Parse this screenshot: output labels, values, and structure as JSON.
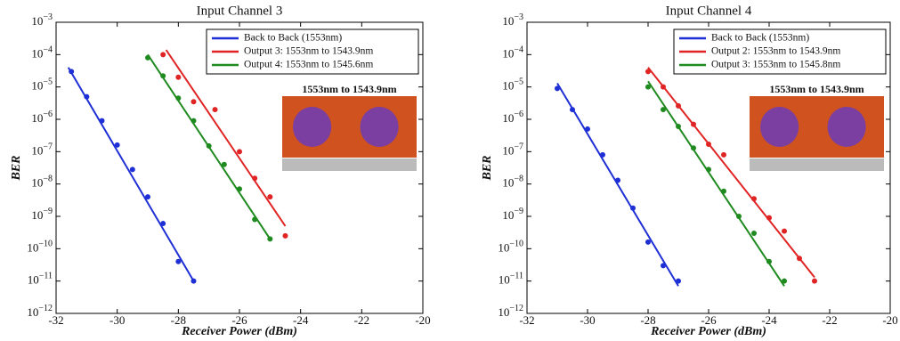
{
  "chart_data": [
    {
      "type": "scatter",
      "title": "Input Channel 3",
      "xlabel": "Receiver Power (dBm)",
      "ylabel": "BER",
      "log_y": true,
      "legend": "upper right",
      "annotation": "1553nm to 1543.9nm",
      "xlim": [
        -32,
        -20
      ],
      "xticks": [
        -32,
        -30,
        -28,
        -26,
        -24,
        -22,
        -20
      ],
      "ylim": [
        1e-12,
        0.001
      ],
      "yticks": [
        {
          "value": 1e-12,
          "label": "10−12"
        },
        {
          "value": 1e-11,
          "label": "10−11"
        },
        {
          "value": 1e-10,
          "label": "10−10"
        },
        {
          "value": 1e-09,
          "label": "10−9"
        },
        {
          "value": 1e-08,
          "label": "10−8"
        },
        {
          "value": 1e-07,
          "label": "10−7"
        },
        {
          "value": 1e-06,
          "label": "10−6"
        },
        {
          "value": 1e-05,
          "label": "10−5"
        },
        {
          "value": 0.0001,
          "label": "10−4"
        },
        {
          "value": 0.001,
          "label": "10−3"
        }
      ],
      "series": [
        {
          "name": "Back to Back (1553nm)",
          "color": "#1f2fd6",
          "x": [
            -31.5,
            -31,
            -30.5,
            -30,
            -29.5,
            -29,
            -28.5,
            -28,
            -27.5
          ],
          "values": [
            3e-05,
            5e-06,
            9e-07,
            1.6e-07,
            2.8e-08,
            4e-09,
            6e-10,
            4e-11,
            1e-11
          ],
          "fit": {
            "x": [
              -31.6,
              -27.5
            ],
            "values": [
              4e-05,
              1e-11
            ]
          }
        },
        {
          "name": "Output 3: 1553nm to 1543.9nm",
          "color": "#e02424",
          "x": [
            -28.5,
            -28,
            -27.5,
            -26.8,
            -26,
            -25.5,
            -25,
            -24.5
          ],
          "values": [
            0.0001,
            2e-05,
            3.5e-06,
            2e-06,
            1e-07,
            1.5e-08,
            4e-09,
            2.5e-10
          ],
          "fit": {
            "x": [
              -28.4,
              -24.5
            ],
            "values": [
              0.00014,
              5e-10
            ]
          }
        },
        {
          "name": "Output 4: 1553nm to 1545.6nm",
          "color": "#1f8a1f",
          "x": [
            -29,
            -28.5,
            -28,
            -27.5,
            -27,
            -26.5,
            -26,
            -25.5,
            -25
          ],
          "values": [
            8e-05,
            2.2e-05,
            4.5e-06,
            9e-07,
            1.5e-07,
            4e-08,
            7e-09,
            8e-10,
            2e-10
          ],
          "fit": {
            "x": [
              -29,
              -25
            ],
            "values": [
              0.0001,
              2e-10
            ]
          }
        }
      ]
    },
    {
      "type": "scatter",
      "title": "Input Channel 4",
      "xlabel": "Receiver Power (dBm)",
      "ylabel": "BER",
      "log_y": true,
      "legend": "upper right",
      "annotation": "1553nm to 1543.9nm",
      "xlim": [
        -32,
        -20
      ],
      "xticks": [
        -32,
        -30,
        -28,
        -26,
        -24,
        -22,
        -20
      ],
      "ylim": [
        1e-12,
        0.001
      ],
      "yticks": [
        {
          "value": 1e-12,
          "label": "10−12"
        },
        {
          "value": 1e-11,
          "label": "10−11"
        },
        {
          "value": 1e-10,
          "label": "10−10"
        },
        {
          "value": 1e-09,
          "label": "10−9"
        },
        {
          "value": 1e-08,
          "label": "10−8"
        },
        {
          "value": 1e-07,
          "label": "10−7"
        },
        {
          "value": 1e-06,
          "label": "10−6"
        },
        {
          "value": 1e-05,
          "label": "10−5"
        },
        {
          "value": 0.0001,
          "label": "10−4"
        },
        {
          "value": 0.001,
          "label": "10−3"
        }
      ],
      "series": [
        {
          "name": "Back to Back (1553nm)",
          "color": "#1f2fd6",
          "x": [
            -31,
            -30.5,
            -30,
            -29.5,
            -29,
            -28.5,
            -28,
            -27.5,
            -27
          ],
          "values": [
            9e-06,
            2e-06,
            5e-07,
            8e-08,
            1.3e-08,
            1.8e-09,
            1.6e-10,
            3e-11,
            1e-11
          ],
          "fit": {
            "x": [
              -31,
              -27
            ],
            "values": [
              1.3e-05,
              7e-12
            ]
          }
        },
        {
          "name": "Output 2: 1553nm to 1543.9nm",
          "color": "#e02424",
          "x": [
            -28,
            -27.5,
            -27,
            -26.5,
            -26,
            -25.5,
            -24.5,
            -24,
            -23.5,
            -23,
            -22.5
          ],
          "values": [
            3e-05,
            1e-05,
            2.6e-06,
            7e-07,
            1.7e-07,
            8e-08,
            3.5e-09,
            9e-10,
            3.5e-10,
            5e-11,
            1e-11
          ],
          "fit": {
            "x": [
              -28,
              -22.5
            ],
            "values": [
              4e-05,
              1.3e-11
            ]
          }
        },
        {
          "name": "Output 3: 1553nm to 1545.8nm",
          "color": "#1f8a1f",
          "x": [
            -28,
            -27.5,
            -27,
            -26.5,
            -26,
            -25.5,
            -25,
            -24.5,
            -24,
            -23.5
          ],
          "values": [
            1e-05,
            2e-06,
            6e-07,
            1.3e-07,
            2.8e-08,
            6e-09,
            1e-09,
            3e-10,
            4e-11,
            1e-11
          ],
          "fit": {
            "x": [
              -28,
              -23.5
            ],
            "values": [
              1.5e-05,
              7e-12
            ]
          }
        }
      ]
    }
  ]
}
